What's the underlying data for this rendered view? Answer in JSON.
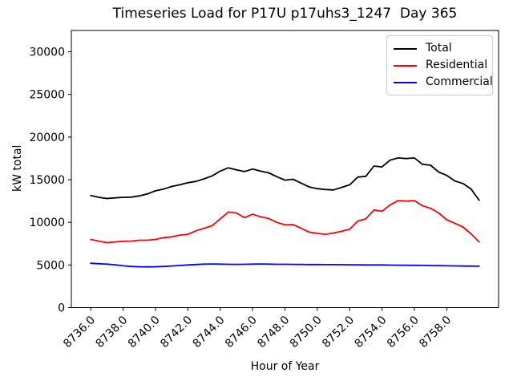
{
  "title": "Timeseries Load for P17U p17uhs3_1247  Day 365",
  "chart_data": {
    "type": "line",
    "title": "Timeseries Load for P17U p17uhs3_1247  Day 365",
    "xlabel": "Hour of Year",
    "ylabel": "kW total",
    "xlim": [
      8734.8,
      8761.2
    ],
    "ylim": [
      0,
      32500
    ],
    "grid": false,
    "legend_position": "upper right",
    "xticks": [
      8736,
      8738,
      8740,
      8742,
      8744,
      8746,
      8748,
      8750,
      8752,
      8754,
      8756,
      8758
    ],
    "xtick_labels": [
      "8736.0",
      "8738.0",
      "8740.0",
      "8742.0",
      "8744.0",
      "8746.0",
      "8748.0",
      "8750.0",
      "8752.0",
      "8754.0",
      "8756.0",
      "8758.0"
    ],
    "yticks": [
      0,
      5000,
      10000,
      15000,
      20000,
      25000,
      30000
    ],
    "ytick_labels": [
      "0",
      "5000",
      "10000",
      "15000",
      "20000",
      "25000",
      "30000"
    ],
    "x": [
      8736.0,
      8736.5,
      8737.0,
      8737.5,
      8738.0,
      8738.5,
      8739.0,
      8739.5,
      8740.0,
      8740.5,
      8741.0,
      8741.5,
      8742.0,
      8742.5,
      8743.0,
      8743.5,
      8744.0,
      8744.5,
      8745.0,
      8745.5,
      8746.0,
      8746.5,
      8747.0,
      8747.5,
      8748.0,
      8748.5,
      8749.0,
      8749.5,
      8750.0,
      8750.5,
      8751.0,
      8751.5,
      8752.0,
      8752.5,
      8753.0,
      8753.5,
      8754.0,
      8754.5,
      8755.0,
      8755.5,
      8756.0,
      8756.5,
      8757.0,
      8757.5,
      8758.0,
      8758.5,
      8759.0,
      8759.5,
      8760.0
    ],
    "series": [
      {
        "name": "Total",
        "color": "#000000",
        "values": [
          13150,
          12930,
          12790,
          12870,
          12930,
          12950,
          13100,
          13330,
          13700,
          13900,
          14200,
          14400,
          14650,
          14800,
          15100,
          15450,
          16000,
          16400,
          16150,
          15950,
          16250,
          16000,
          15800,
          15350,
          14950,
          15050,
          14600,
          14150,
          13950,
          13850,
          13800,
          14100,
          14400,
          15300,
          15400,
          16600,
          16500,
          17300,
          17550,
          17480,
          17550,
          16800,
          16700,
          15900,
          15500,
          14850,
          14550,
          13900,
          12600
        ]
      },
      {
        "name": "Residential",
        "color": "#ff0000",
        "values": [
          8000,
          7800,
          7620,
          7700,
          7780,
          7800,
          7900,
          7900,
          8000,
          8200,
          8300,
          8500,
          8600,
          9000,
          9300,
          9600,
          10400,
          11200,
          11100,
          10550,
          10950,
          10650,
          10450,
          10000,
          9700,
          9750,
          9300,
          8850,
          8700,
          8600,
          8750,
          8950,
          9200,
          10150,
          10400,
          11450,
          11300,
          12050,
          12550,
          12500,
          12550,
          11950,
          11650,
          11100,
          10300,
          9900,
          9450,
          8650,
          7700
        ]
      },
      {
        "name": "Commercial",
        "color": "#0000ff",
        "values": [
          5200,
          5150,
          5100,
          5020,
          4900,
          4830,
          4790,
          4780,
          4790,
          4830,
          4880,
          4940,
          5000,
          5050,
          5100,
          5120,
          5100,
          5080,
          5070,
          5080,
          5100,
          5120,
          5100,
          5080,
          5080,
          5070,
          5060,
          5050,
          5050,
          5040,
          5040,
          5030,
          5020,
          5010,
          5000,
          5000,
          5000,
          4990,
          4980,
          4970,
          4960,
          4950,
          4930,
          4920,
          4900,
          4890,
          4870,
          4860,
          4850
        ]
      }
    ]
  },
  "legend": {
    "items": [
      {
        "label": "Total"
      },
      {
        "label": "Residential"
      },
      {
        "label": "Commercial"
      }
    ]
  }
}
